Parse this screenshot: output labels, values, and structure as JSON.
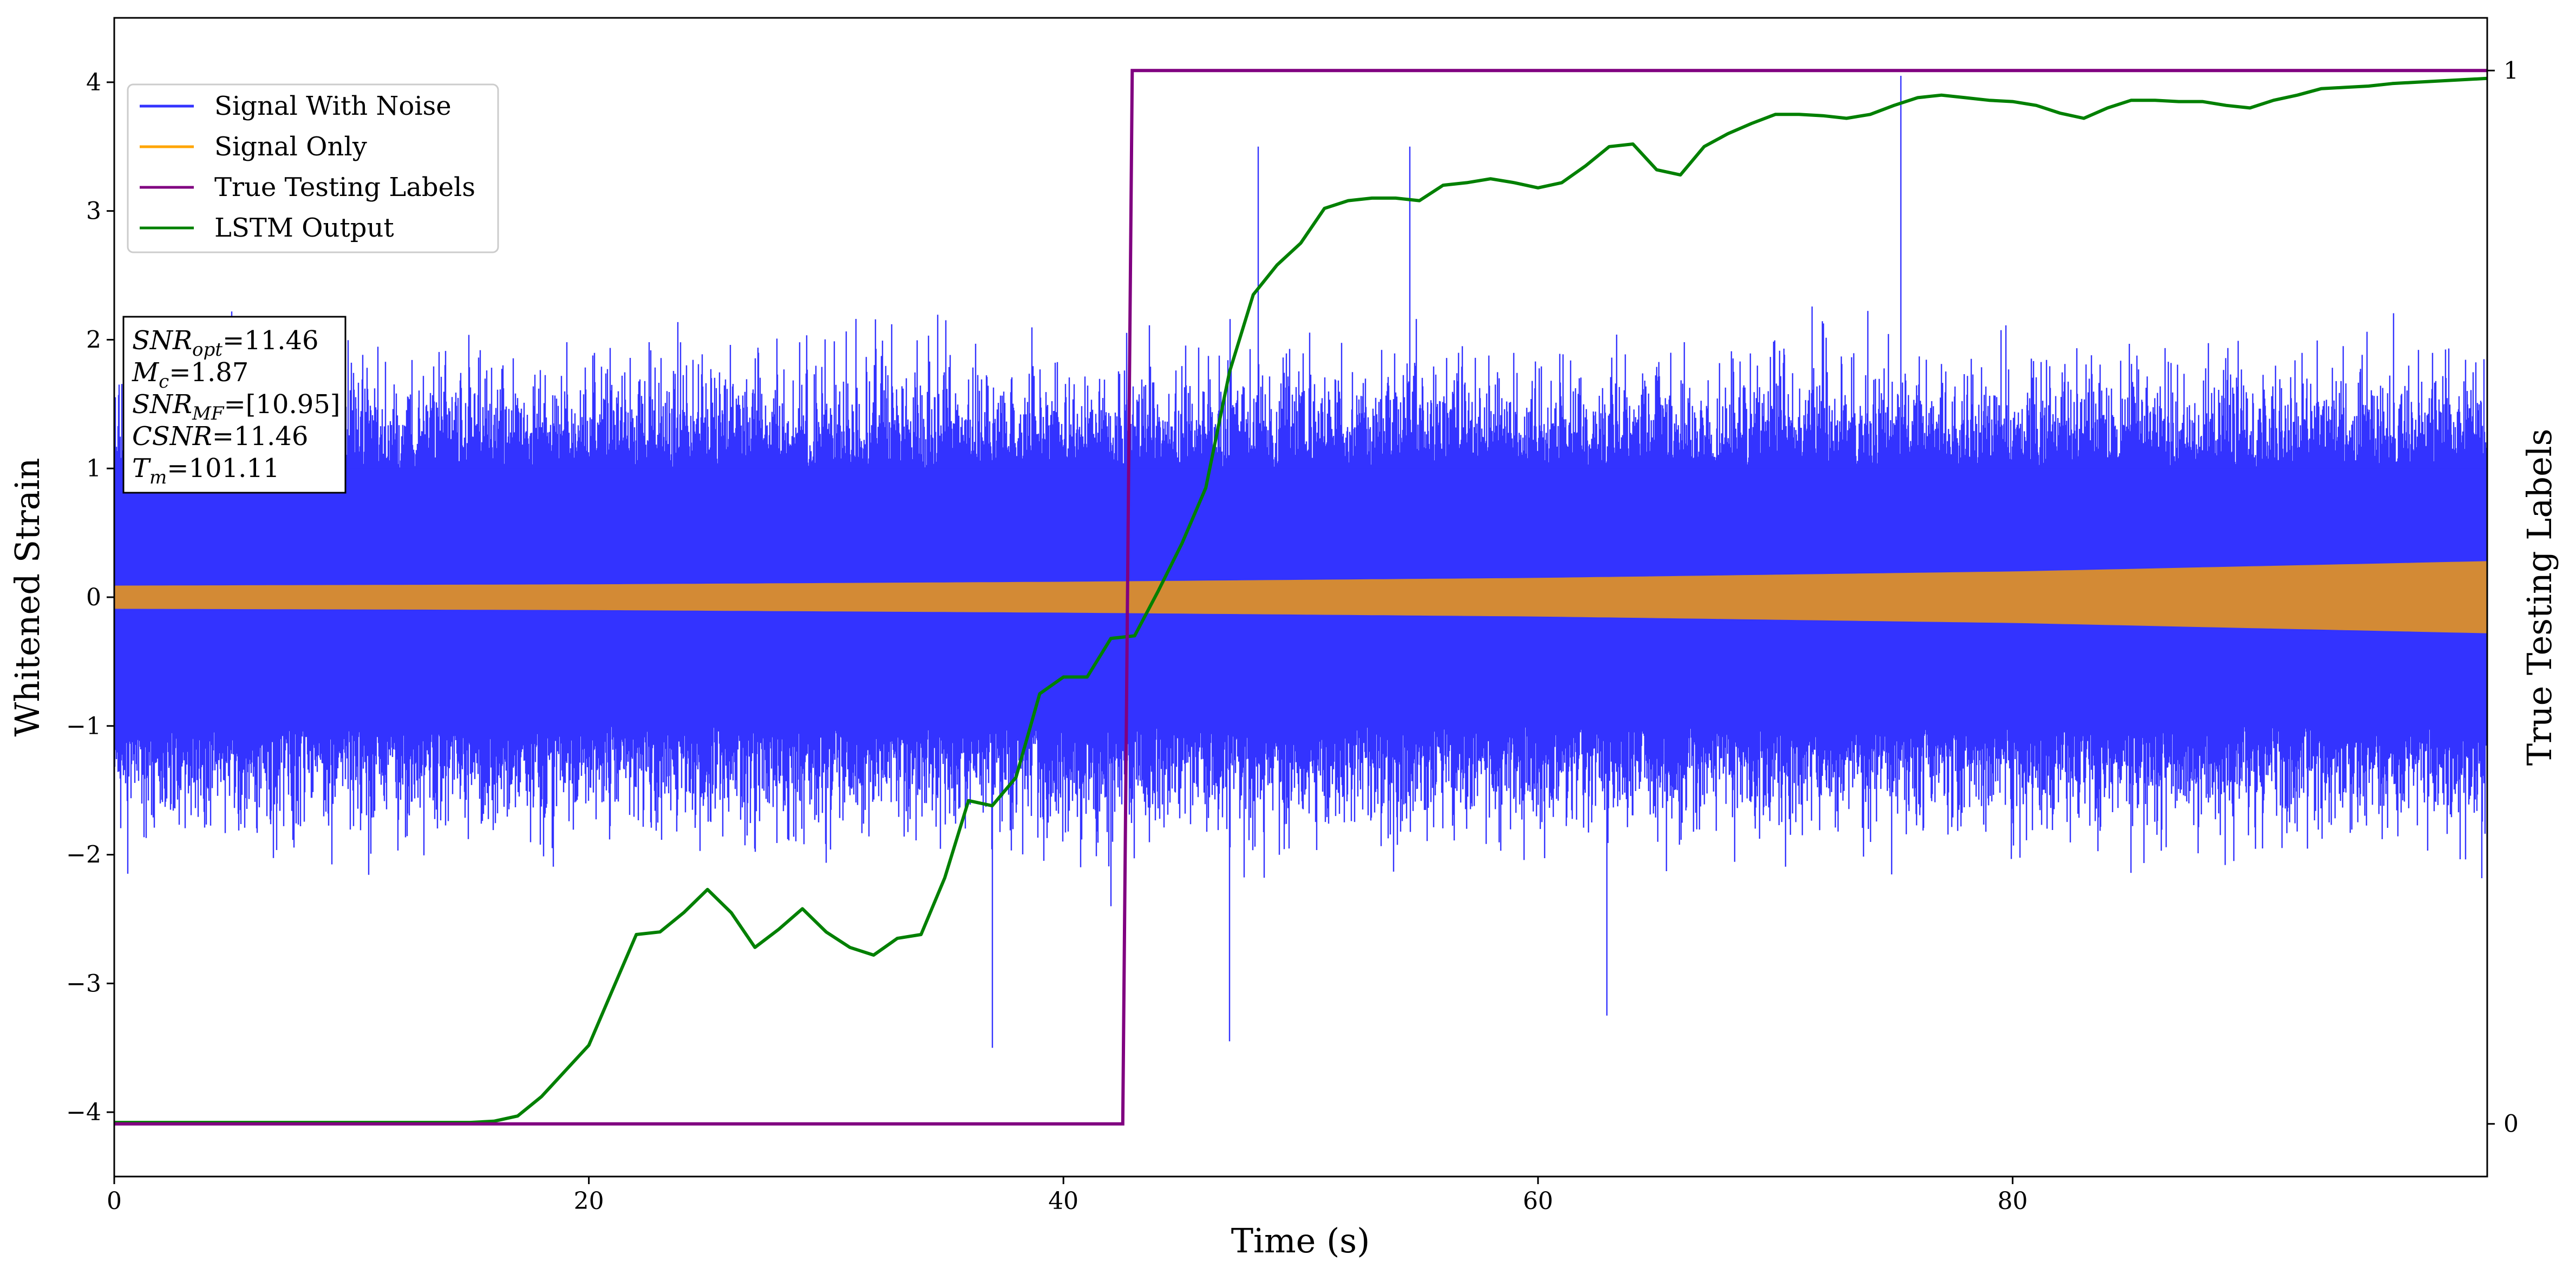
{
  "chart_data": {
    "type": "line",
    "xlabel": "Time (s)",
    "ylabel": "Whitened Strain",
    "y2label": "True Testing Labels",
    "xlim": [
      0,
      100
    ],
    "ylim": [
      -4.5,
      4.5
    ],
    "y2lim": [
      -0.05,
      1.05
    ],
    "xticks": [
      0,
      20,
      40,
      60,
      80
    ],
    "yticks": [
      -4,
      -3,
      -2,
      -1,
      0,
      1,
      2,
      3,
      4
    ],
    "y2ticks": [
      0,
      1
    ],
    "grid": false,
    "legend_location": "upper-left",
    "colors": {
      "noise": "#3333ff",
      "signal": "#ffa500",
      "signal_blend": "#d38a35",
      "labels": "#800080",
      "lstm": "#008000"
    },
    "series": [
      {
        "name": "Signal With Noise",
        "axis": "left",
        "kind": "noise",
        "x_range": [
          0,
          100
        ],
        "typical_band": [
          -1.5,
          1.5
        ],
        "spike_peaks": [
          {
            "x": 48.2,
            "y": 3.5
          },
          {
            "x": 54.6,
            "y": 3.5
          },
          {
            "x": 75.3,
            "y": 4.05
          },
          {
            "x": 42.0,
            "y": -2.4
          },
          {
            "x": 37.0,
            "y": -3.5
          },
          {
            "x": 47.0,
            "y": -3.45
          },
          {
            "x": 62.9,
            "y": -3.25
          }
        ]
      },
      {
        "name": "Signal Only",
        "axis": "left",
        "kind": "envelope",
        "x": [
          0,
          20,
          40,
          60,
          80,
          100
        ],
        "amplitude": [
          0.09,
          0.1,
          0.12,
          0.15,
          0.2,
          0.28
        ]
      },
      {
        "name": "True Testing Labels",
        "axis": "right",
        "kind": "step",
        "x": [
          0,
          42.5,
          42.9,
          100
        ],
        "y": [
          0,
          0,
          1,
          1
        ]
      },
      {
        "name": "LSTM Output",
        "axis": "left",
        "kind": "line",
        "x": [
          0,
          15,
          16,
          17,
          18,
          19,
          20,
          21,
          22,
          23,
          24,
          25,
          26,
          27,
          28,
          29,
          30,
          31,
          32,
          33,
          34,
          35,
          36,
          37,
          38,
          39,
          40,
          41,
          42,
          43,
          44,
          45,
          46,
          47,
          48,
          49,
          50,
          51,
          52,
          53,
          54,
          55,
          56,
          57,
          58,
          59,
          60,
          61,
          62,
          63,
          64,
          65,
          66,
          67,
          68,
          69,
          70,
          71,
          72,
          73,
          74,
          75,
          76,
          77,
          78,
          79,
          80,
          81,
          82,
          83,
          84,
          85,
          86,
          87,
          88,
          89,
          90,
          91,
          92,
          93,
          94,
          95,
          96,
          97,
          98,
          99,
          100
        ],
        "y": [
          -4.08,
          -4.08,
          -4.07,
          -4.03,
          -3.88,
          -3.68,
          -3.48,
          -3.05,
          -2.62,
          -2.6,
          -2.45,
          -2.27,
          -2.45,
          -2.72,
          -2.58,
          -2.42,
          -2.6,
          -2.72,
          -2.78,
          -2.65,
          -2.62,
          -2.18,
          -1.58,
          -1.62,
          -1.4,
          -0.75,
          -0.62,
          -0.62,
          -0.32,
          -0.3,
          0.05,
          0.42,
          0.85,
          1.75,
          2.35,
          2.58,
          2.75,
          3.02,
          3.08,
          3.1,
          3.1,
          3.08,
          3.2,
          3.22,
          3.25,
          3.22,
          3.18,
          3.22,
          3.35,
          3.5,
          3.52,
          3.32,
          3.28,
          3.5,
          3.6,
          3.68,
          3.75,
          3.75,
          3.74,
          3.72,
          3.75,
          3.82,
          3.88,
          3.9,
          3.88,
          3.86,
          3.85,
          3.82,
          3.76,
          3.72,
          3.8,
          3.86,
          3.86,
          3.85,
          3.85,
          3.82,
          3.8,
          3.86,
          3.9,
          3.95,
          3.96,
          3.97,
          3.99,
          4.0,
          4.01,
          4.02,
          4.03
        ]
      }
    ],
    "annotation": {
      "lines": [
        {
          "var": "SNR",
          "sub": "opt",
          "value": "=11.46"
        },
        {
          "var": "M",
          "sub": "c",
          "value": "=1.87"
        },
        {
          "var": "SNR",
          "sub": "MF",
          "value": "=[10.95]"
        },
        {
          "var": "CSNR",
          "sub": "",
          "value": "=11.46"
        },
        {
          "var": "T",
          "sub": "m",
          "value": "=101.11"
        }
      ]
    }
  }
}
